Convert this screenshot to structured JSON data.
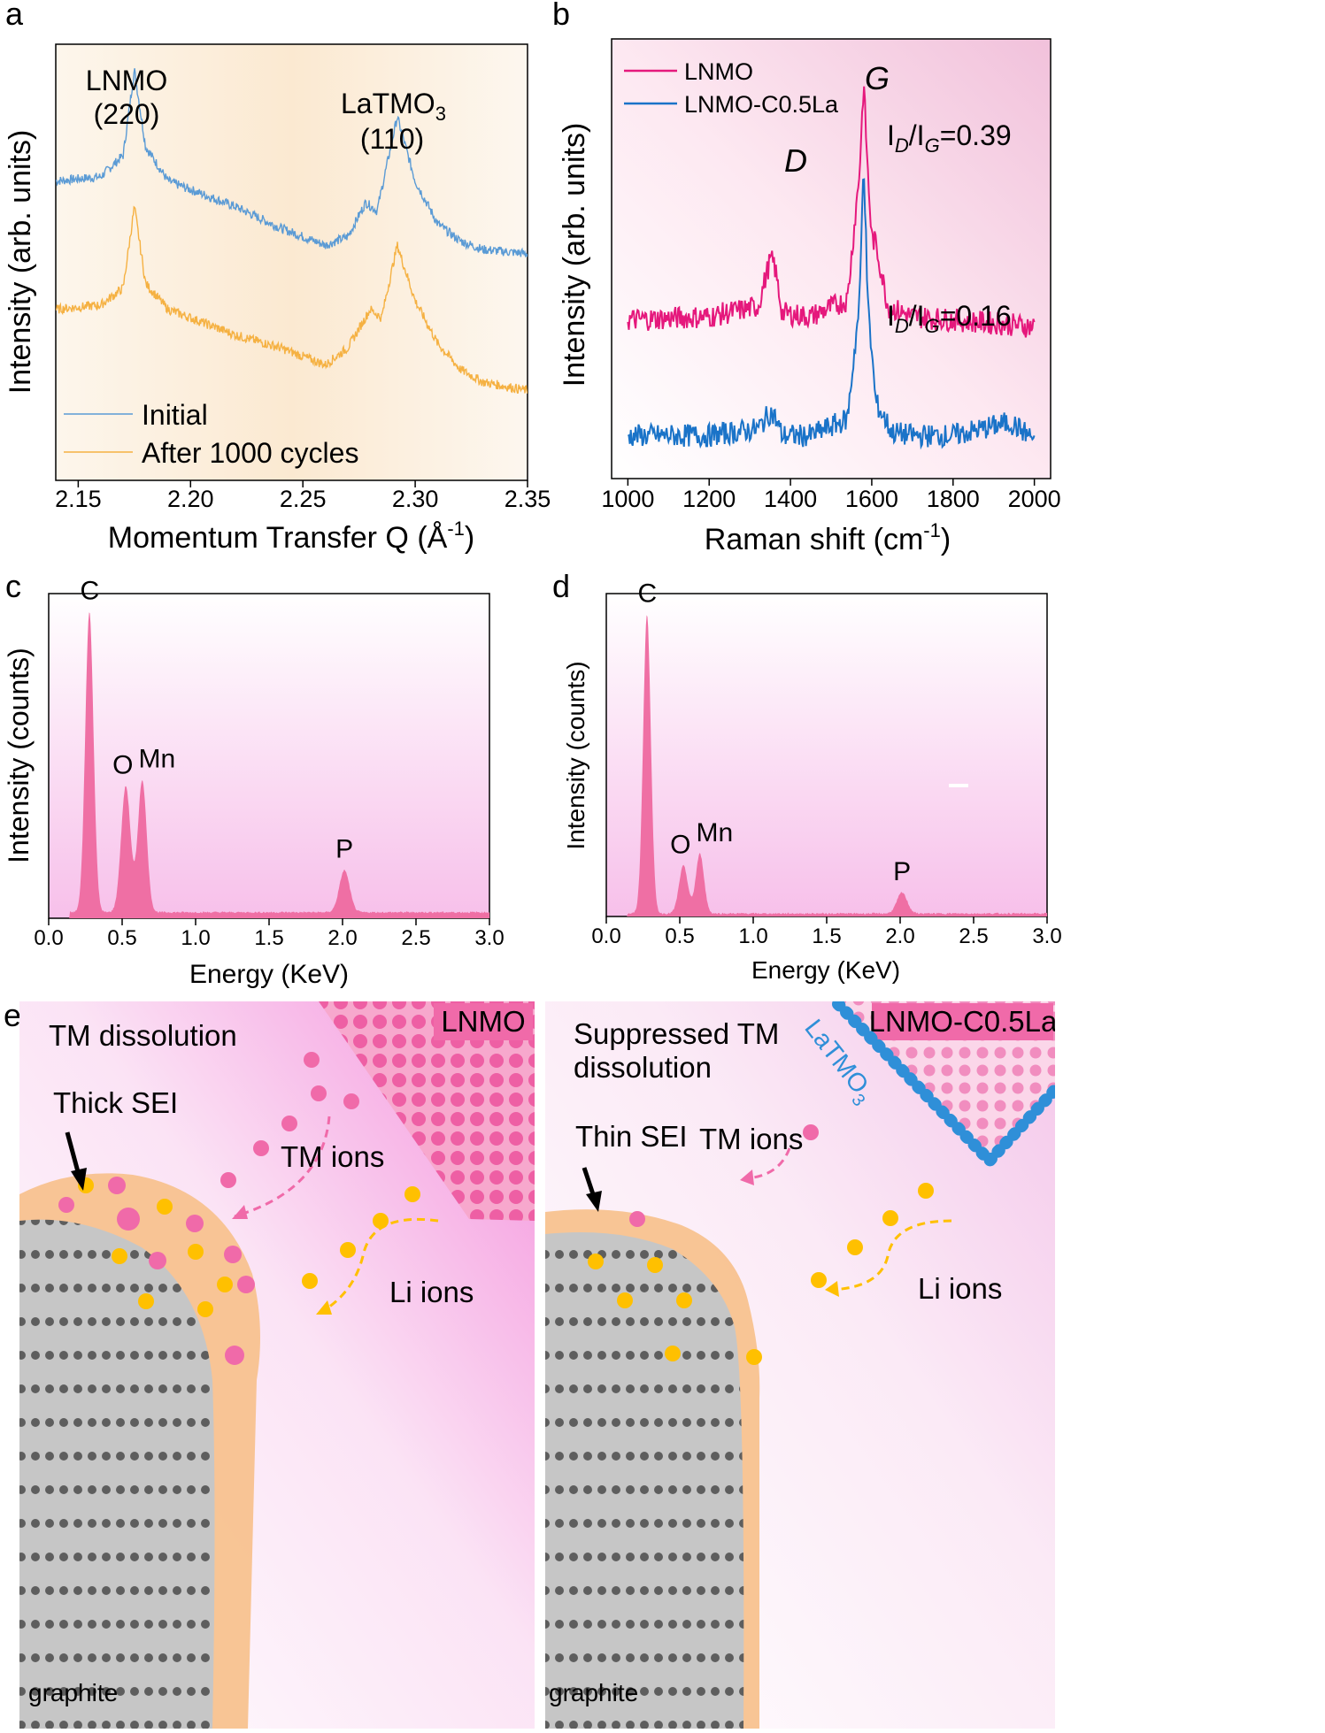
{
  "panels": {
    "a": {
      "letter": "a"
    },
    "b": {
      "letter": "b"
    },
    "c": {
      "letter": "c"
    },
    "d": {
      "letter": "d"
    },
    "e": {
      "letter": "e"
    }
  },
  "chart_data": [
    {
      "id": "a",
      "type": "line",
      "title": "",
      "xlabel": "Momentum Transfer Q (Å-1)",
      "xlabel_main": "Momentum Transfer Q (Å",
      "xlabel_sup": "-1",
      "xlabel_close": ")",
      "ylabel": "Intensity (arb. units)",
      "xlim": [
        2.14,
        2.35
      ],
      "xticks": [
        "2.15",
        "2.20",
        "2.25",
        "2.30",
        "2.35"
      ],
      "xtick_values": [
        2.15,
        2.2,
        2.25,
        2.3,
        2.35
      ],
      "annotations": [
        "LNMO",
        "(220)",
        "LaTMO",
        "3",
        "(110)"
      ],
      "series": [
        {
          "name": "Initial",
          "color": "#5b9bd5",
          "x": [
            2.14,
            2.16,
            2.17,
            2.175,
            2.18,
            2.19,
            2.2,
            2.22,
            2.24,
            2.26,
            2.27,
            2.278,
            2.283,
            2.292,
            2.3,
            2.31,
            2.32,
            2.33,
            2.35
          ],
          "y": [
            0.3,
            0.31,
            0.36,
            0.56,
            0.38,
            0.3,
            0.28,
            0.24,
            0.19,
            0.15,
            0.17,
            0.25,
            0.23,
            0.45,
            0.3,
            0.2,
            0.16,
            0.14,
            0.13
          ]
        },
        {
          "name": "After 1000 cycles",
          "color": "#f5b142",
          "x": [
            2.14,
            2.16,
            2.17,
            2.175,
            2.18,
            2.19,
            2.2,
            2.22,
            2.24,
            2.26,
            2.27,
            2.28,
            2.285,
            2.292,
            2.3,
            2.31,
            2.32,
            2.33,
            2.35
          ],
          "y": [
            0.0,
            0.01,
            0.05,
            0.24,
            0.06,
            0.0,
            -0.02,
            -0.06,
            -0.09,
            -0.13,
            -0.09,
            0.0,
            -0.02,
            0.15,
            0.02,
            -0.08,
            -0.14,
            -0.17,
            -0.19
          ]
        }
      ]
    },
    {
      "id": "b",
      "type": "line",
      "title": "",
      "xlabel": "Raman shift (cm-1)",
      "xlabel_main": "Raman shift (cm",
      "xlabel_sup": "-1",
      "xlabel_close": ")",
      "ylabel": "Intensity (arb. units)",
      "xlim": [
        960,
        2040
      ],
      "xticks": [
        "1000",
        "1200",
        "1400",
        "1600",
        "1800",
        "2000"
      ],
      "xtick_values": [
        1000,
        1200,
        1400,
        1600,
        1800,
        2000
      ],
      "peak_labels": {
        "D": "D",
        "G": "G"
      },
      "ratios": [
        {
          "label_I": "I",
          "sub_D": "D",
          "slash": "/I",
          "sub_G": "G",
          "value": "=0.39"
        },
        {
          "label_I": "I",
          "sub_D": "D",
          "slash": "/I",
          "sub_G": "G",
          "value": "=0.16"
        }
      ],
      "series": [
        {
          "name": "LNMO",
          "color": "#e5187c",
          "x": [
            1000,
            1200,
            1320,
            1350,
            1360,
            1380,
            1450,
            1540,
            1570,
            1580,
            1590,
            1600,
            1610,
            1640,
            1700,
            1800,
            2000
          ],
          "y": [
            0.1,
            0.11,
            0.14,
            0.28,
            0.27,
            0.12,
            0.11,
            0.16,
            0.55,
            0.82,
            0.55,
            0.35,
            0.33,
            0.14,
            0.11,
            0.1,
            0.08
          ]
        },
        {
          "name": "LNMO-C0.5La",
          "color": "#1a73c8",
          "x": [
            1000,
            1200,
            1320,
            1350,
            1360,
            1380,
            1450,
            1540,
            1570,
            1580,
            1590,
            1610,
            1650,
            1700,
            1800,
            1940,
            2000
          ],
          "y": [
            0.05,
            0.05,
            0.07,
            0.12,
            0.11,
            0.05,
            0.05,
            0.1,
            0.45,
            0.9,
            0.45,
            0.15,
            0.06,
            0.05,
            0.05,
            0.09,
            0.04
          ]
        }
      ]
    },
    {
      "id": "c",
      "type": "area",
      "title": "",
      "xlabel": "Energy (KeV)",
      "ylabel": "Intensity (counts)",
      "xlim": [
        0.0,
        3.0
      ],
      "xticks": [
        "0.0",
        "0.5",
        "1.0",
        "1.5",
        "2.0",
        "2.5",
        "3.0"
      ],
      "xtick_values": [
        0.0,
        0.5,
        1.0,
        1.5,
        2.0,
        2.5,
        3.0
      ],
      "elements": [
        "C",
        "O",
        "Mn",
        "P"
      ],
      "peaks": [
        {
          "element": "C",
          "energy": 0.277,
          "height": 1.0,
          "width": 0.028
        },
        {
          "element": "O",
          "energy": 0.525,
          "height": 0.42,
          "width": 0.032
        },
        {
          "element": "Mn",
          "energy": 0.637,
          "height": 0.44,
          "width": 0.03
        },
        {
          "element": "P",
          "energy": 2.013,
          "height": 0.14,
          "width": 0.035
        }
      ],
      "baseline": 0.02,
      "color": "#ef6fa4"
    },
    {
      "id": "d",
      "type": "area",
      "title": "",
      "xlabel": "Energy (KeV)",
      "ylabel": "Intensity (counts)",
      "xlim": [
        0.0,
        3.0
      ],
      "xticks": [
        "0.0",
        "0.5",
        "1.0",
        "1.5",
        "2.0",
        "2.5",
        "3.0"
      ],
      "xtick_values": [
        0.0,
        0.5,
        1.0,
        1.5,
        2.0,
        2.5,
        3.0
      ],
      "elements": [
        "C",
        "O",
        "Mn",
        "P"
      ],
      "peaks": [
        {
          "element": "C",
          "energy": 0.277,
          "height": 1.0,
          "width": 0.026
        },
        {
          "element": "O",
          "energy": 0.525,
          "height": 0.16,
          "width": 0.03
        },
        {
          "element": "Mn",
          "energy": 0.637,
          "height": 0.2,
          "width": 0.028
        },
        {
          "element": "P",
          "energy": 2.013,
          "height": 0.07,
          "width": 0.035
        }
      ],
      "baseline": 0.01,
      "color": "#ef6fa4"
    }
  ],
  "schematic": {
    "left": {
      "badge": "LNMO",
      "dissolution": "TM dissolution",
      "sei": "Thick SEI",
      "tm_ions": "TM ions",
      "li_ions": "Li ions",
      "graphite": "graphite"
    },
    "right": {
      "badge": "LNMO-C0.5La",
      "dissolution_1": "Suppressed TM",
      "dissolution_2": "dissolution",
      "coating": "LaTMO",
      "coating_sub": "3",
      "sei": "Thin SEI",
      "tm_ions": "TM ions",
      "li_ions": "Li ions",
      "graphite": "graphite"
    },
    "colors": {
      "tm_ion": "#f06aa9",
      "li_ion": "#ffc000",
      "sei": "#f8c28f",
      "graphite": "#bdbdbd",
      "coating": "#2f8fd8",
      "cathode": "#f06aa9"
    }
  }
}
